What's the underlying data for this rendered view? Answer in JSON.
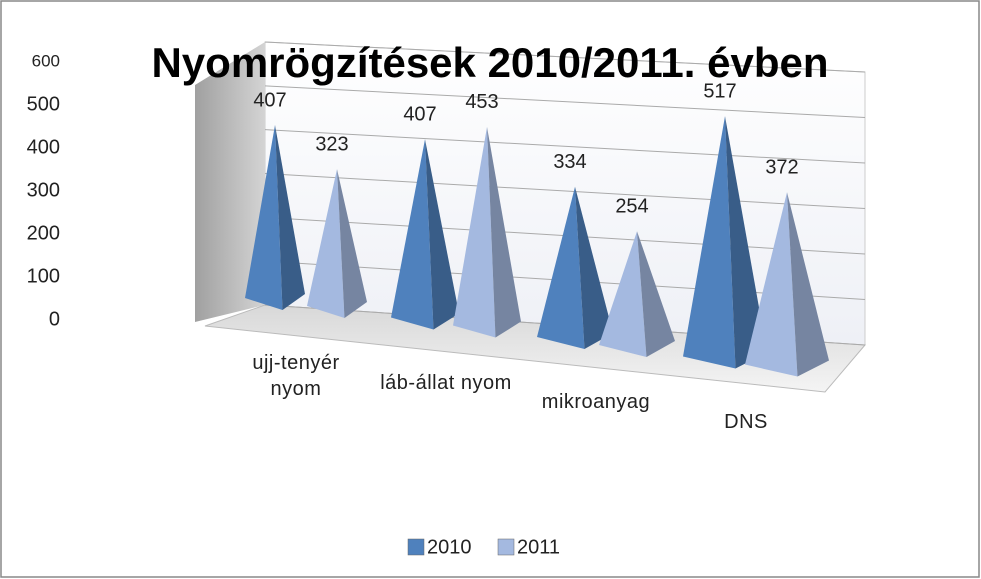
{
  "chart_data": {
    "type": "pyramid3d",
    "title": "Nyomrögzítések 2010/2011. évben",
    "categories": [
      "ujj-tenyér nyom",
      "láb-állat nyom",
      "mikroanyag",
      "DNS"
    ],
    "series": [
      {
        "name": "2010",
        "color": "#4f81bd",
        "values": [
          407,
          407,
          334,
          517
        ]
      },
      {
        "name": "2011",
        "color": "#a4b9e0",
        "values": [
          323,
          453,
          254,
          372
        ]
      }
    ],
    "ylim": [
      0,
      600
    ],
    "yticks": [
      0,
      100,
      200,
      300,
      400,
      500,
      600
    ],
    "grid": true,
    "legend": "bottom"
  }
}
